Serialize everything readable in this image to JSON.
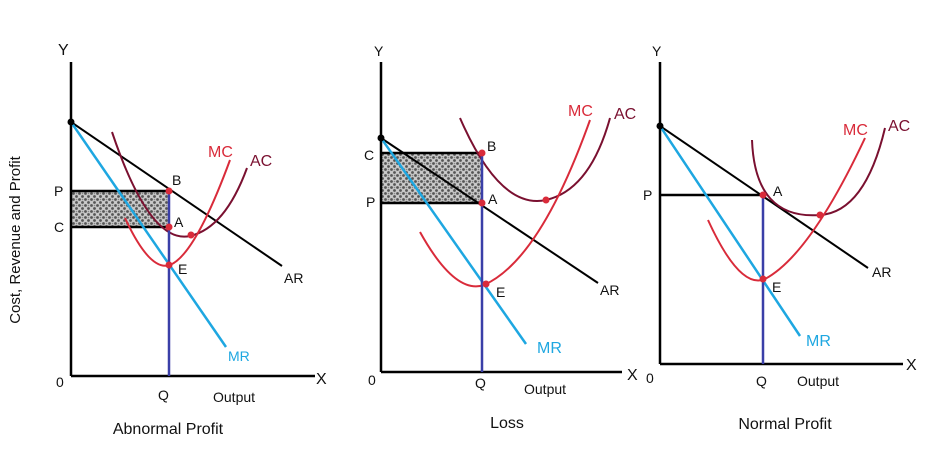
{
  "y_axis_label": "Cost, Revenue and Profit",
  "colors": {
    "axis": "#000000",
    "ar": "#000000",
    "mr": "#1ea7e1",
    "mc": "#d92b3a",
    "ac": "#7a1030",
    "q_line": "#3a3fa8",
    "point": "#d92b3a"
  },
  "panels": [
    {
      "caption": "Abnormal Profit",
      "y_axis": "Y",
      "x_axis": "X",
      "origin": "0",
      "x_title": "Output",
      "q": "Q",
      "price": "P",
      "cost": "C",
      "ar": "AR",
      "mr": "MR",
      "mc": "MC",
      "ac": "AC",
      "points": [
        "A",
        "B",
        "E"
      ]
    },
    {
      "caption": "Loss",
      "y_axis": "Y",
      "x_axis": "X",
      "origin": "0",
      "x_title": "Output",
      "q": "Q",
      "price": "P",
      "cost": "C",
      "ar": "AR",
      "mr": "MR",
      "mc": "MC",
      "ac": "AC",
      "points": [
        "A",
        "B",
        "E"
      ]
    },
    {
      "caption": "Normal Profit",
      "y_axis": "Y",
      "x_axis": "X",
      "origin": "0",
      "x_title": "Output",
      "q": "Q",
      "price": "P",
      "ar": "AR",
      "mr": "MR",
      "mc": "MC",
      "ac": "AC",
      "points": [
        "A",
        "E"
      ]
    }
  ]
}
